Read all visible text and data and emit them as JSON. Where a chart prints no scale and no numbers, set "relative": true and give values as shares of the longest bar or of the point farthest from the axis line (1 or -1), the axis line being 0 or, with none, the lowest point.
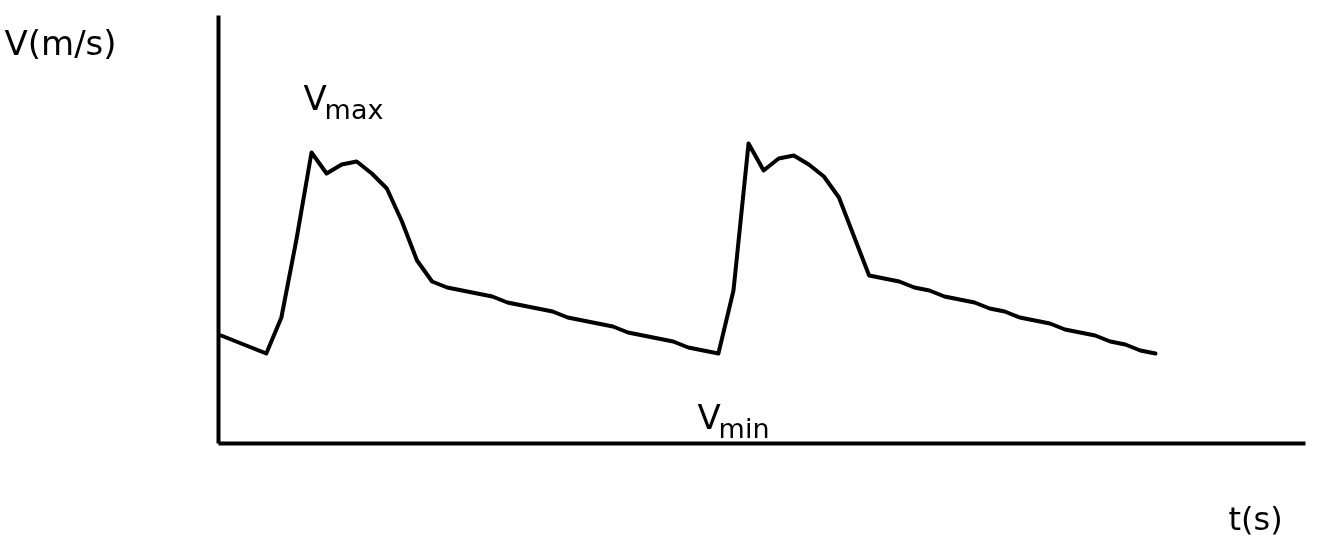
{
  "chart_data": {
    "type": "line",
    "relative": true,
    "xlabel": "t(s)",
    "ylabel": "V(m/s)",
    "color": "#000000",
    "line_style": "solid",
    "marker": "none",
    "grid": false,
    "tick_labels": false,
    "categories": [
      null,
      null,
      null,
      null,
      null,
      null,
      null,
      null,
      null,
      null,
      null,
      null,
      null,
      null,
      null,
      null,
      null,
      null,
      null,
      null,
      null,
      null,
      null,
      null,
      null,
      null,
      null,
      null,
      null,
      null,
      null,
      null,
      null,
      null,
      null,
      null,
      null,
      null,
      null,
      null,
      null,
      null,
      null,
      null,
      null,
      null,
      null,
      null,
      null,
      null,
      null,
      null,
      null,
      null,
      null,
      null,
      null,
      null,
      null,
      null,
      null,
      null,
      null
    ],
    "values": [
      0.36,
      0.34,
      0.32,
      0.3,
      0.42,
      0.68,
      0.97,
      0.9,
      0.93,
      0.94,
      0.9,
      0.85,
      0.74,
      0.61,
      0.54,
      0.52,
      0.51,
      0.5,
      0.49,
      0.47,
      0.46,
      0.45,
      0.44,
      0.42,
      0.41,
      0.4,
      0.39,
      0.37,
      0.36,
      0.35,
      0.34,
      0.32,
      0.31,
      0.3,
      0.51,
      1.0,
      0.91,
      0.95,
      0.96,
      0.93,
      0.89,
      0.82,
      0.69,
      0.56,
      0.55,
      0.54,
      0.52,
      0.51,
      0.49,
      0.48,
      0.47,
      0.45,
      0.44,
      0.42,
      0.41,
      0.4,
      0.38,
      0.37,
      0.36,
      0.34,
      0.33,
      0.31,
      0.3
    ],
    "annotations": [
      "V$_{max}$",
      "V$_{min}$"
    ]
  }
}
